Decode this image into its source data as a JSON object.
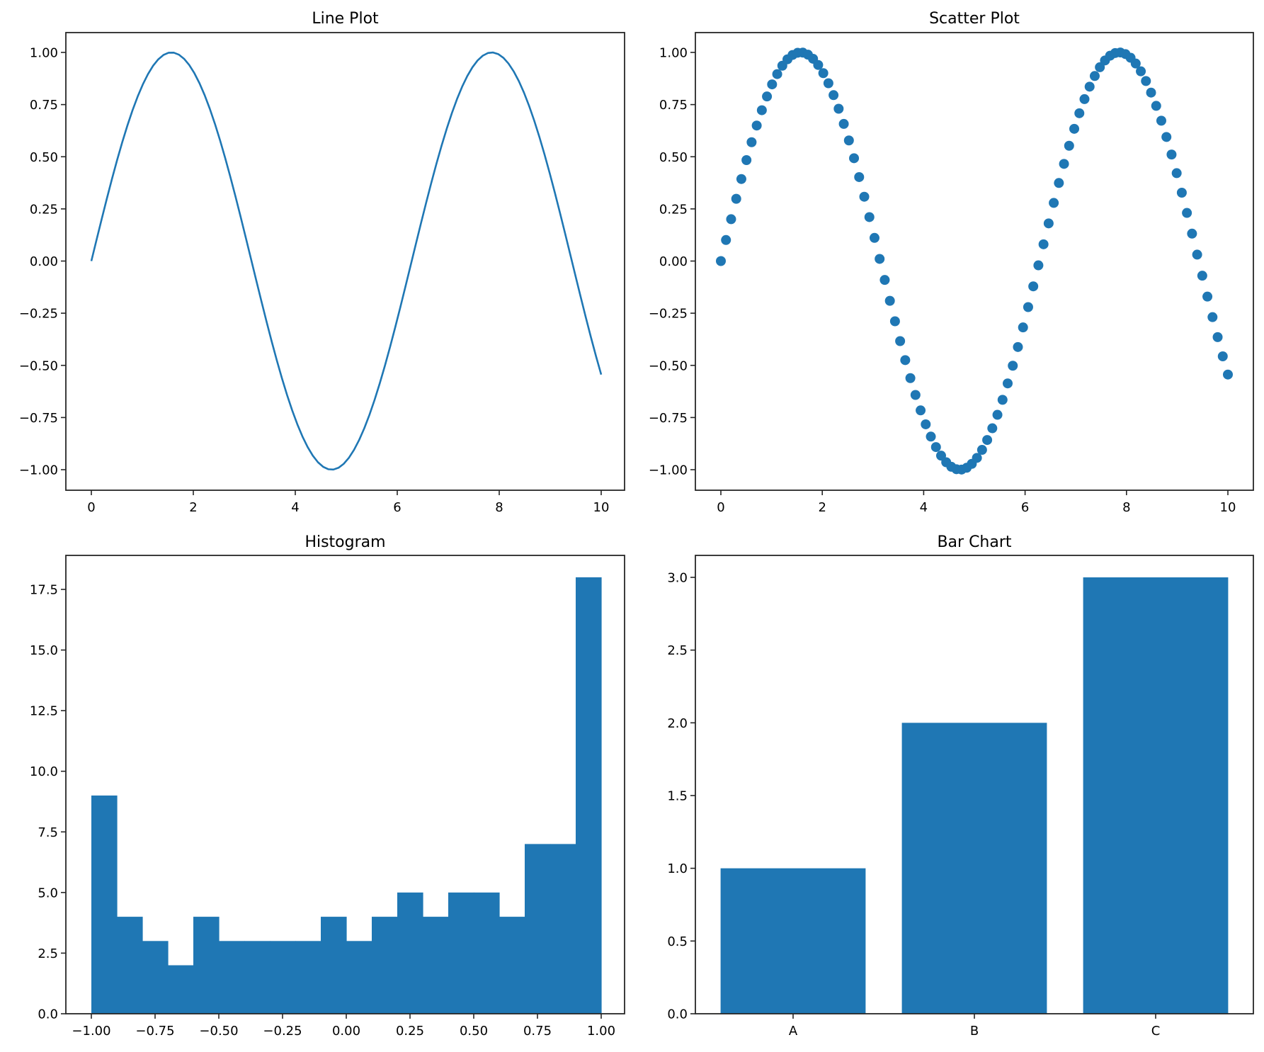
{
  "figure": {
    "layout": "2x2 subplots",
    "colors": {
      "series": "#1f77b4",
      "axes": "#262626",
      "text": "#000000",
      "background": "#ffffff"
    }
  },
  "chart_data": [
    {
      "type": "line",
      "title": "Line Plot",
      "xlabel": "",
      "ylabel": "",
      "function": "y = sin(x)",
      "x_range": [
        0,
        10
      ],
      "n_points": 100,
      "xlim": [
        -0.5,
        10.5
      ],
      "ylim": [
        -1.1,
        1.1
      ],
      "xticks": [
        0,
        2,
        4,
        6,
        8,
        10
      ],
      "xtick_labels": [
        "0",
        "2",
        "4",
        "6",
        "8",
        "10"
      ],
      "yticks": [
        -1.0,
        -0.75,
        -0.5,
        -0.25,
        0.0,
        0.25,
        0.5,
        0.75,
        1.0
      ],
      "ytick_labels": [
        "−1.00",
        "−0.75",
        "−0.50",
        "−0.25",
        "0.00",
        "0.25",
        "0.50",
        "0.75",
        "1.00"
      ],
      "grid": false,
      "legend": null,
      "key_points": [
        {
          "x": 0,
          "y": 0.0
        },
        {
          "x": 1.57,
          "y": 1.0
        },
        {
          "x": 4.71,
          "y": -1.0
        },
        {
          "x": 7.85,
          "y": 1.0
        },
        {
          "x": 10,
          "y": -0.544
        }
      ]
    },
    {
      "type": "scatter",
      "title": "Scatter Plot",
      "xlabel": "",
      "ylabel": "",
      "function": "y = sin(x)",
      "x_range": [
        0,
        10
      ],
      "n_points": 100,
      "xlim": [
        -0.5,
        10.5
      ],
      "ylim": [
        -1.1,
        1.1
      ],
      "xticks": [
        0,
        2,
        4,
        6,
        8,
        10
      ],
      "xtick_labels": [
        "0",
        "2",
        "4",
        "6",
        "8",
        "10"
      ],
      "yticks": [
        -1.0,
        -0.75,
        -0.5,
        -0.25,
        0.0,
        0.25,
        0.5,
        0.75,
        1.0
      ],
      "ytick_labels": [
        "−1.00",
        "−0.75",
        "−0.50",
        "−0.25",
        "0.00",
        "0.25",
        "0.50",
        "0.75",
        "1.00"
      ],
      "grid": false,
      "legend": null
    },
    {
      "type": "bar",
      "subtype": "histogram",
      "title": "Histogram",
      "xlabel": "",
      "ylabel": "",
      "bins": 20,
      "bin_edges_range": [
        -1.0,
        1.0
      ],
      "categories": [
        "-1.0–-0.9",
        "-0.9–-0.8",
        "-0.8–-0.7",
        "-0.7–-0.6",
        "-0.6–-0.5",
        "-0.5–-0.4",
        "-0.4–-0.3",
        "-0.3–-0.2",
        "-0.2–-0.1",
        "-0.1–0.0",
        "0.0–0.1",
        "0.1–0.2",
        "0.2–0.3",
        "0.3–0.4",
        "0.4–0.5",
        "0.5–0.6",
        "0.6–0.7",
        "0.7–0.8",
        "0.8–0.9",
        "0.9–1.0"
      ],
      "values": [
        9,
        4,
        3,
        2,
        4,
        3,
        3,
        3,
        3,
        4,
        3,
        4,
        5,
        4,
        5,
        5,
        4,
        7,
        7,
        18
      ],
      "xlim": [
        -1.1,
        1.1
      ],
      "ylim": [
        0,
        18.9
      ],
      "xticks": [
        -1.0,
        -0.75,
        -0.5,
        -0.25,
        0.0,
        0.25,
        0.5,
        0.75,
        1.0
      ],
      "xtick_labels": [
        "−1.00",
        "−0.75",
        "−0.50",
        "−0.25",
        "0.00",
        "0.25",
        "0.50",
        "0.75",
        "1.00"
      ],
      "yticks": [
        0,
        2.5,
        5,
        7.5,
        10,
        12.5,
        15,
        17.5
      ],
      "ytick_labels": [
        "0.0",
        "2.5",
        "5.0",
        "7.5",
        "10.0",
        "12.5",
        "15.0",
        "17.5"
      ],
      "grid": false,
      "legend": null
    },
    {
      "type": "bar",
      "title": "Bar Chart",
      "xlabel": "",
      "ylabel": "",
      "categories": [
        "A",
        "B",
        "C"
      ],
      "values": [
        1,
        2,
        3
      ],
      "ylim": [
        0,
        3.15
      ],
      "yticks": [
        0,
        0.5,
        1.0,
        1.5,
        2.0,
        2.5,
        3.0
      ],
      "ytick_labels": [
        "0.0",
        "0.5",
        "1.0",
        "1.5",
        "2.0",
        "2.5",
        "3.0"
      ],
      "grid": false,
      "legend": null
    }
  ]
}
